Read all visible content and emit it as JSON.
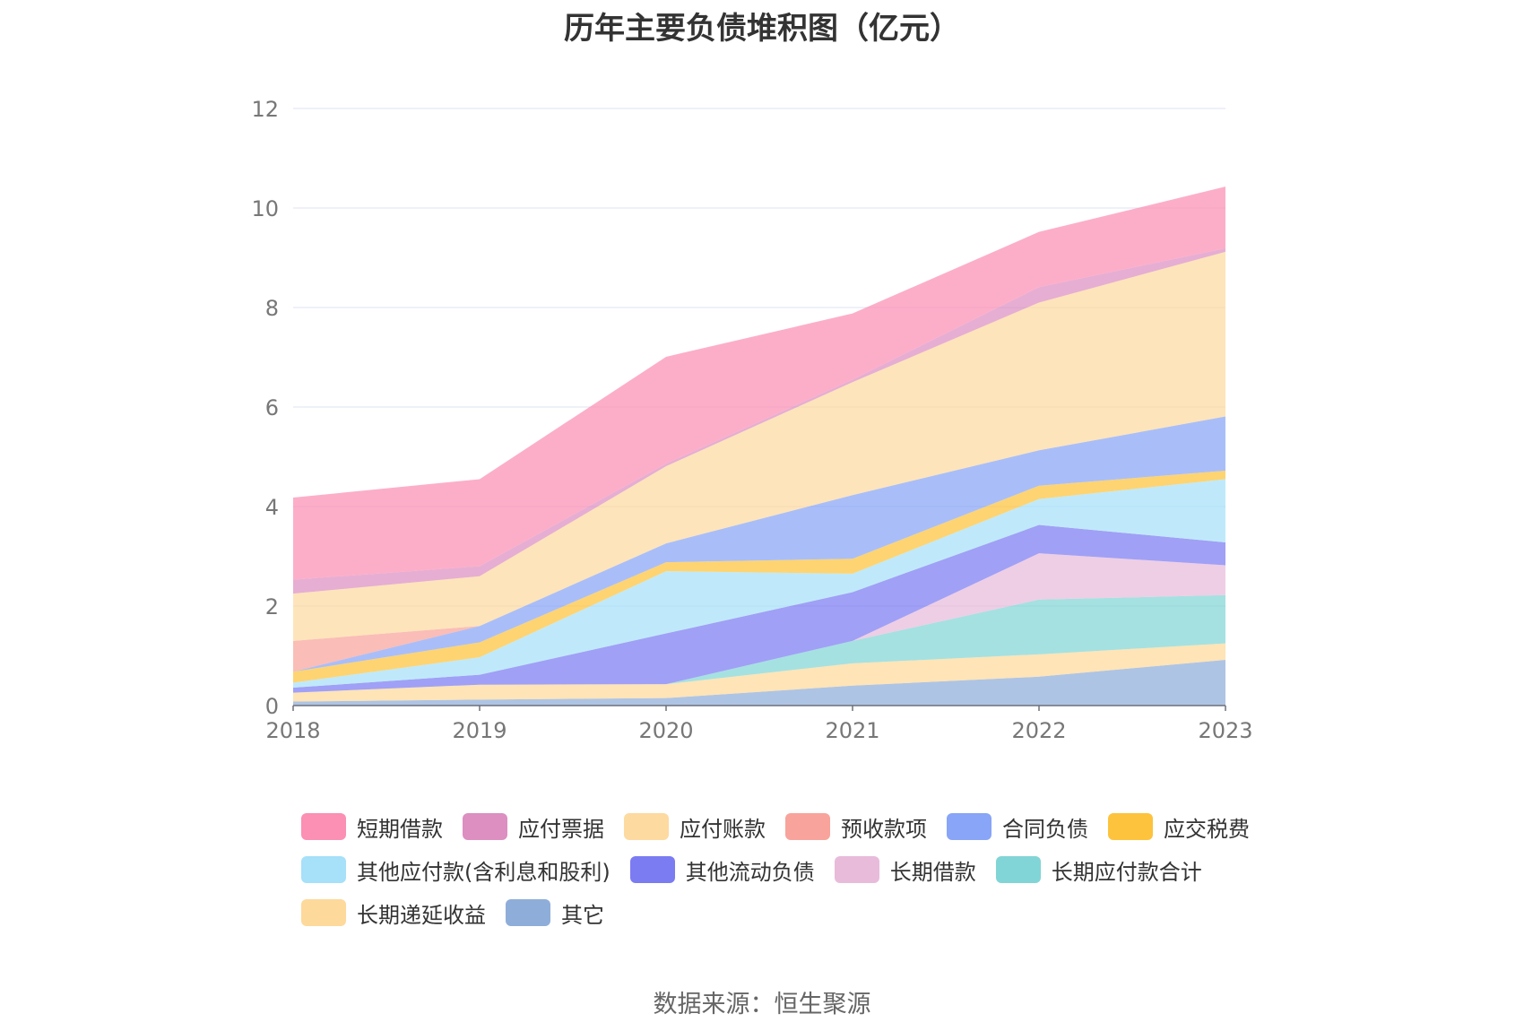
{
  "chart_data": {
    "type": "area",
    "stacked": true,
    "title": "历年主要负债堆积图（亿元）",
    "x": [
      "2018",
      "2019",
      "2020",
      "2021",
      "2022",
      "2023"
    ],
    "ylim": [
      0,
      12
    ],
    "yticks": [
      "0",
      "2",
      "4",
      "6",
      "8",
      "10",
      "12"
    ],
    "grid": true,
    "legend_position": "bottom",
    "series": [
      {
        "name": "其它",
        "color": "#8fadd9",
        "values": [
          0.08,
          0.12,
          0.15,
          0.4,
          0.58,
          0.92
        ]
      },
      {
        "name": "长期递延收益",
        "color": "#fdd99b",
        "values": [
          0.18,
          0.3,
          0.28,
          0.45,
          0.45,
          0.33
        ]
      },
      {
        "name": "长期应付款合计",
        "color": "#82d5d6",
        "values": [
          0,
          0,
          0,
          0.45,
          1.1,
          0.97
        ]
      },
      {
        "name": "长期借款",
        "color": "#e8bbdb",
        "values": [
          0,
          0,
          0,
          0,
          0.93,
          0.6
        ]
      },
      {
        "name": "其他流动负债",
        "color": "#7b7bf2",
        "values": [
          0.1,
          0.2,
          1.02,
          0.98,
          0.57,
          0.46
        ]
      },
      {
        "name": "其他应付款(含利息和股利)",
        "color": "#a6e0f9",
        "values": [
          0.1,
          0.35,
          1.25,
          0.37,
          0.52,
          1.27
        ]
      },
      {
        "name": "应交税费",
        "color": "#fdc33c",
        "values": [
          0.22,
          0.3,
          0.18,
          0.3,
          0.27,
          0.17
        ]
      },
      {
        "name": "合同负债",
        "color": "#88a5f7",
        "values": [
          0,
          0.33,
          0.38,
          1.28,
          0.71,
          1.09
        ]
      },
      {
        "name": "预收款项",
        "color": "#f8a39b",
        "values": [
          0.62,
          0,
          0,
          0,
          0,
          0
        ]
      },
      {
        "name": "应付账款",
        "color": "#fddaa0",
        "values": [
          0.95,
          1.0,
          1.55,
          2.27,
          2.97,
          3.31
        ]
      },
      {
        "name": "应付票据",
        "color": "#dc8fc0",
        "values": [
          0.28,
          0.2,
          0.05,
          0.05,
          0.31,
          0.07
        ]
      },
      {
        "name": "短期借款",
        "color": "#fb8fb4",
        "values": [
          1.65,
          1.75,
          2.15,
          1.33,
          1.11,
          1.24
        ]
      }
    ]
  },
  "legend_rows": [
    [
      {
        "label": "短期借款",
        "color": "#fb8fb4"
      },
      {
        "label": "应付票据",
        "color": "#dc8fc0"
      },
      {
        "label": "应付账款",
        "color": "#fddaa0"
      },
      {
        "label": "预收款项",
        "color": "#f8a39b"
      },
      {
        "label": "合同负债",
        "color": "#88a5f7"
      },
      {
        "label": "应交税费",
        "color": "#fdc33c"
      }
    ],
    [
      {
        "label": "其他应付款(含利息和股利)",
        "color": "#a6e0f9"
      },
      {
        "label": "其他流动负债",
        "color": "#7b7bf2"
      },
      {
        "label": "长期借款",
        "color": "#e8bbdb"
      },
      {
        "label": "长期应付款合计",
        "color": "#82d5d6"
      }
    ],
    [
      {
        "label": "长期递延收益",
        "color": "#fdd99b"
      },
      {
        "label": "其它",
        "color": "#8fadd9"
      }
    ]
  ],
  "source": "数据来源：恒生聚源"
}
